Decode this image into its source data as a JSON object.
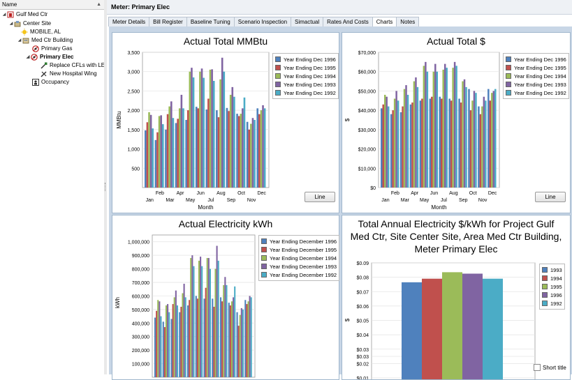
{
  "tree": {
    "header": "Name",
    "nodes": [
      {
        "label": "Gulf Med Ctr",
        "icon": "organization-icon"
      },
      {
        "label": "Center Site",
        "icon": "site-icon"
      },
      {
        "label": "MOBILE, AL",
        "icon": "weather-station-icon"
      },
      {
        "label": "Med Ctr Building",
        "icon": "building-icon"
      },
      {
        "label": "Primary Gas",
        "icon": "meter-icon"
      },
      {
        "label": "Primary Elec",
        "icon": "meter-icon"
      },
      {
        "label": "Replace CFLs with LEDs",
        "icon": "measure-icon"
      },
      {
        "label": "New Hospital Wing",
        "icon": "measure-icon"
      },
      {
        "label": "Occupancy",
        "icon": "occupancy-icon"
      }
    ]
  },
  "main": {
    "title": "Meter:  Primary Elec",
    "tabs": [
      "Meter Details",
      "Bill Register",
      "Baseline Tuning",
      "Scenario Inspection",
      "Simactual",
      "Rates And Costs",
      "Charts",
      "Notes"
    ],
    "active_tab": "Charts",
    "line_button": "Line",
    "short_title": "Short title"
  },
  "colors": {
    "1996": "#4f81bd",
    "1995": "#c0504d",
    "1994": "#9bbb59",
    "1993": "#8064a2",
    "1992": "#4bacc6"
  },
  "chart_data": [
    {
      "type": "bar",
      "title": "Actual Total MMBtu",
      "xlabel": "Month",
      "ylabel": "MMBtu",
      "ylim": [
        0,
        3500
      ],
      "yticks": [
        "500",
        "1,000",
        "1,500",
        "2,000",
        "2,500",
        "3,000",
        "3,500"
      ],
      "ytick_values": [
        500,
        1000,
        1500,
        2000,
        2500,
        3000,
        3500
      ],
      "categories_top": [
        "Feb",
        "Apr",
        "Jun",
        "Aug",
        "Oct",
        "Dec"
      ],
      "categories_bottom": [
        "Jan",
        "Mar",
        "May",
        "Jul",
        "Sep",
        "Nov"
      ],
      "series": [
        {
          "name": "Year Ending Dec 1996",
          "values": [
            1480,
            1230,
            1500,
            1670,
            1750,
            2090,
            2020,
            2000,
            2060,
            1910,
            1700,
            2050
          ]
        },
        {
          "name": "Year Ending Dec 1995",
          "values": [
            1690,
            1430,
            1900,
            1780,
            2000,
            2050,
            2300,
            1820,
            1980,
            1850,
            1500,
            1900
          ]
        },
        {
          "name": "Year Ending Dec 1994",
          "values": [
            1950,
            1850,
            2100,
            2050,
            3000,
            3000,
            3050,
            2800,
            2400,
            1910,
            1650,
            2000
          ]
        },
        {
          "name": "Year Ending Dec 1993",
          "values": [
            1880,
            1870,
            2230,
            2400,
            3100,
            3080,
            3060,
            3360,
            2600,
            2050,
            1800,
            2130
          ]
        },
        {
          "name": "Year Ending Dec 1992",
          "values": [
            1530,
            1640,
            1800,
            2050,
            2850,
            2840,
            2760,
            3000,
            2350,
            2330,
            1750,
            2050
          ]
        }
      ]
    },
    {
      "type": "bar",
      "title": "Actual Total $",
      "xlabel": "Month",
      "ylabel": "$",
      "ylim": [
        0,
        70000
      ],
      "yticks": [
        "$0",
        "$10,000",
        "$20,000",
        "$30,000",
        "$40,000",
        "$50,000",
        "$60,000",
        "$70,000"
      ],
      "ytick_values": [
        0,
        10000,
        20000,
        30000,
        40000,
        50000,
        60000,
        70000
      ],
      "categories_top": [
        "Feb",
        "Apr",
        "Jun",
        "Aug",
        "Oct",
        "Dec"
      ],
      "categories_bottom": [
        "Jan",
        "Mar",
        "May",
        "Jul",
        "Sep",
        "Nov"
      ],
      "series": [
        {
          "name": "Year Ending Dec 1996",
          "values": [
            41000,
            38000,
            39000,
            43000,
            45000,
            46000,
            47000,
            46000,
            46000,
            51000,
            42000,
            51000
          ]
        },
        {
          "name": "Year Ending Dec 1995",
          "values": [
            43000,
            40000,
            42000,
            44000,
            46000,
            47000,
            46000,
            45000,
            44000,
            40000,
            38000,
            45000
          ]
        },
        {
          "name": "Year Ending Dec 1994",
          "values": [
            48000,
            46000,
            51000,
            55000,
            63000,
            60000,
            61000,
            62000,
            55000,
            45000,
            42000,
            49000
          ]
        },
        {
          "name": "Year Ending Dec 1993",
          "values": [
            47000,
            50000,
            53000,
            57000,
            65000,
            64000,
            64000,
            65000,
            56000,
            50000,
            47000,
            50000
          ]
        },
        {
          "name": "Year Ending Dec 1992",
          "values": [
            42000,
            45000,
            48000,
            52000,
            60000,
            60000,
            62000,
            63000,
            52000,
            49000,
            45000,
            51000
          ]
        }
      ]
    },
    {
      "type": "bar",
      "title": "Actual Electricity kWh",
      "xlabel": "",
      "ylabel": "kWh",
      "ylim": [
        0,
        1050000
      ],
      "yticks": [
        "100,000",
        "200,000",
        "300,000",
        "400,000",
        "500,000",
        "600,000",
        "700,000",
        "800,000",
        "900,000",
        "1,000,000"
      ],
      "ytick_values": [
        100000,
        200000,
        300000,
        400000,
        500000,
        600000,
        700000,
        800000,
        900000,
        1000000
      ],
      "series": [
        {
          "name": "Year Ending December 1996",
          "values": [
            440000,
            410000,
            430000,
            480000,
            530000,
            600000,
            580000,
            580000,
            590000,
            550000,
            480000,
            570000
          ]
        },
        {
          "name": "Year Ending December 1995",
          "values": [
            490000,
            370000,
            540000,
            520000,
            570000,
            580000,
            660000,
            520000,
            560000,
            530000,
            380000,
            540000
          ]
        },
        {
          "name": "Year Ending December 1994",
          "values": [
            570000,
            530000,
            590000,
            620000,
            880000,
            860000,
            880000,
            800000,
            680000,
            560000,
            460000,
            560000
          ]
        },
        {
          "name": "Year Ending December 1993",
          "values": [
            560000,
            540000,
            640000,
            690000,
            900000,
            890000,
            880000,
            970000,
            740000,
            590000,
            510000,
            600000
          ]
        },
        {
          "name": "Year Ending December 1992",
          "values": [
            450000,
            480000,
            530000,
            590000,
            820000,
            820000,
            800000,
            860000,
            680000,
            670000,
            500000,
            590000
          ]
        }
      ]
    },
    {
      "type": "bar",
      "title": "Total Annual Electricity $/kWh for Project Gulf Med Ctr, Site Center Site, Area Med Ctr Building, Meter Primary Elec",
      "title_lines": [
        "Total Annual Electricity $/kWh for Project Gulf",
        "Med Ctr, Site Center Site, Area Med Ctr Building,",
        "Meter Primary Elec"
      ],
      "ylabel": "$",
      "ylim": [
        0.01,
        0.09
      ],
      "yticks": [
        "$0.01",
        "$0.02",
        "$0.03",
        "$0.03",
        "$0.04",
        "$0.05",
        "$0.06",
        "$0.07",
        "$0.08",
        "$0.09"
      ],
      "ytick_values": [
        0.01,
        0.02,
        0.025,
        0.03,
        0.04,
        0.05,
        0.06,
        0.07,
        0.08,
        0.09
      ],
      "series": [
        {
          "name": "1993",
          "value": 0.0765,
          "color": "#4f81bd"
        },
        {
          "name": "1994",
          "value": 0.079,
          "color": "#c0504d"
        },
        {
          "name": "1995",
          "value": 0.0835,
          "color": "#9bbb59"
        },
        {
          "name": "1996",
          "value": 0.0825,
          "color": "#8064a2"
        },
        {
          "name": "1992",
          "value": 0.079,
          "color": "#4bacc6"
        }
      ]
    }
  ]
}
